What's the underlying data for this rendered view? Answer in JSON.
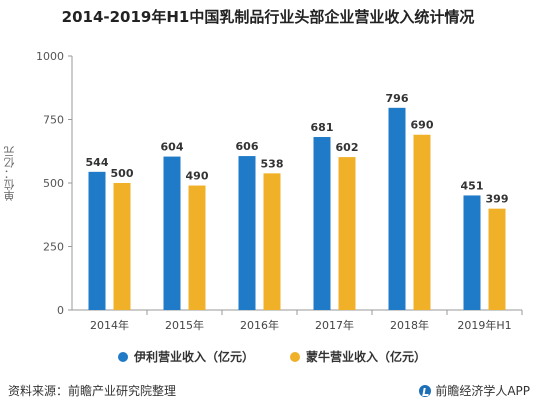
{
  "title": "2014-2019年H1中国乳制品行业头部企业营业收入统计情况",
  "ylabel": "单位：亿元",
  "source": "资料来源：前瞻产业研究院整理",
  "brand": "前瞻经济学人APP",
  "colors": {
    "series1": "#1f7ac8",
    "series2": "#f0b028",
    "axis": "#999999",
    "grid": "#e6e6e6"
  },
  "chart_data": {
    "type": "bar",
    "title": "2014-2019年H1中国乳制品行业头部企业营业收入统计情况",
    "ylabel": "单位：亿元",
    "ylim": [
      0,
      1000
    ],
    "yticks": [
      0,
      250,
      500,
      750,
      1000
    ],
    "categories": [
      "2014年",
      "2015年",
      "2016年",
      "2017年",
      "2018年",
      "2019年H1"
    ],
    "series": [
      {
        "name": "伊利营业收入（亿元）",
        "values": [
          544,
          604,
          606,
          681,
          796,
          451
        ]
      },
      {
        "name": "蒙牛营业收入（亿元）",
        "values": [
          500,
          490,
          538,
          602,
          690,
          399
        ]
      }
    ],
    "legend": "bottom-center",
    "grid": false
  }
}
